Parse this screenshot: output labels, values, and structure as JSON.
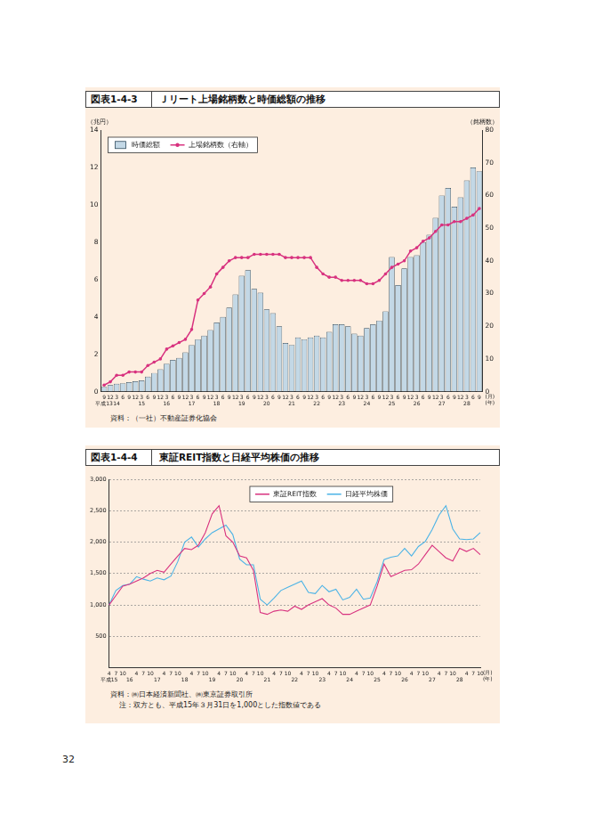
{
  "page_number": "32",
  "chart_data": [
    {
      "type": "bar",
      "figure_number": "図表1-4-3",
      "title": "Ｊリート上場銘柄数と時価総額の推移",
      "y_label": "（兆円）",
      "y2_label": "（銘柄数）",
      "x_unit_labels": [
        "(月)",
        "(年)"
      ],
      "categories": [
        "9",
        "12",
        "3",
        "6",
        "9",
        "12",
        "3",
        "6",
        "9",
        "12",
        "3",
        "6",
        "9",
        "12",
        "3",
        "6",
        "9",
        "12",
        "3",
        "6",
        "9",
        "12",
        "3",
        "6",
        "9",
        "12",
        "3",
        "6",
        "9",
        "12",
        "3",
        "6",
        "9",
        "12",
        "3",
        "6",
        "9",
        "12",
        "3",
        "6",
        "9",
        "12",
        "3",
        "6",
        "9",
        "12",
        "3",
        "6",
        "9",
        "12",
        "3",
        "6",
        "9",
        "12",
        "3",
        "6",
        "9",
        "12",
        "3",
        "6",
        "9"
      ],
      "years": [
        "平成13",
        null,
        "14",
        null,
        null,
        null,
        "15",
        null,
        null,
        null,
        "16",
        null,
        null,
        null,
        "17",
        null,
        null,
        null,
        "18",
        null,
        null,
        null,
        "19",
        null,
        null,
        null,
        "20",
        null,
        null,
        null,
        "21",
        null,
        null,
        null,
        "22",
        null,
        null,
        null,
        "23",
        null,
        null,
        null,
        "24",
        null,
        null,
        null,
        "25",
        null,
        null,
        null,
        "26",
        null,
        null,
        null,
        "27",
        null,
        null,
        null,
        "28",
        null,
        null
      ],
      "series": [
        {
          "name": "時価総額",
          "type": "bar",
          "color": "#c3d8e6",
          "values": [
            0.26,
            0.35,
            0.42,
            0.45,
            0.5,
            0.55,
            0.6,
            0.8,
            1.0,
            1.2,
            1.5,
            1.7,
            1.8,
            2.1,
            2.5,
            2.8,
            3.0,
            3.3,
            3.7,
            4.0,
            4.5,
            5.2,
            6.2,
            6.5,
            5.5,
            5.3,
            4.4,
            4.2,
            3.5,
            2.6,
            2.5,
            2.9,
            2.8,
            2.9,
            3.0,
            2.9,
            3.2,
            3.6,
            3.6,
            3.5,
            3.1,
            3.0,
            3.4,
            3.6,
            3.8,
            4.3,
            7.2,
            5.7,
            6.6,
            7.2,
            7.3,
            8.0,
            8.4,
            9.3,
            10.5,
            10.9,
            9.9,
            10.4,
            11.3,
            12.0,
            11.8
          ]
        },
        {
          "name": "上場銘柄数（右軸）",
          "type": "line",
          "color": "#d8327f",
          "marker": "circle",
          "axis": "y2",
          "values": [
            2,
            3,
            5,
            5,
            6,
            6,
            6,
            8,
            9,
            10,
            13,
            14,
            15,
            16,
            19,
            28,
            30,
            32,
            36,
            38,
            40,
            41,
            41,
            41,
            42,
            42,
            42,
            42,
            42,
            41,
            41,
            41,
            41,
            41,
            38,
            36,
            35,
            35,
            34,
            34,
            34,
            34,
            33,
            33,
            34,
            36,
            38,
            39,
            40,
            43,
            44,
            46,
            47,
            49,
            51,
            51,
            52,
            52,
            53,
            54,
            56
          ]
        }
      ],
      "ylim": [
        0,
        14
      ],
      "yticks": [
        0,
        2,
        4,
        6,
        8,
        10,
        12,
        14
      ],
      "y2lim": [
        0,
        80
      ],
      "y2ticks": [
        0,
        10,
        20,
        30,
        40,
        50,
        60,
        70,
        80
      ],
      "grid": false,
      "legend": "top-left",
      "source": "資料：（一社）不動産証券化協会"
    },
    {
      "type": "line",
      "figure_number": "図表1-4-4",
      "title": "東証REIT指数と日経平均株価の推移",
      "x_unit_labels": [
        "(月)",
        "(年)"
      ],
      "categories": [
        "4",
        "7",
        "10",
        null,
        "4",
        "7",
        "10",
        null,
        "4",
        "7",
        "10",
        null,
        "4",
        "7",
        "10",
        null,
        "4",
        "7",
        "10",
        null,
        "4",
        "7",
        "10",
        null,
        "4",
        "7",
        "10",
        null,
        "4",
        "7",
        "10",
        null,
        "4",
        "7",
        "10",
        null,
        "4",
        "7",
        "10",
        null,
        "4",
        "7",
        "10",
        null,
        "4",
        "7",
        "10",
        null,
        "4",
        "7",
        "10",
        null,
        "4",
        "7",
        "10"
      ],
      "years": [
        "平成15",
        null,
        null,
        "16",
        null,
        null,
        null,
        "17",
        null,
        null,
        null,
        "18",
        null,
        null,
        null,
        "19",
        null,
        null,
        null,
        "20",
        null,
        null,
        null,
        "21",
        null,
        null,
        null,
        "22",
        null,
        null,
        null,
        "23",
        null,
        null,
        null,
        "24",
        null,
        null,
        null,
        "25",
        null,
        null,
        null,
        "26",
        null,
        null,
        null,
        "27",
        null,
        null,
        null,
        "28",
        null,
        null,
        null
      ],
      "series": [
        {
          "name": "東証REIT指数",
          "color": "#d8327f",
          "values": [
            1000,
            1150,
            1300,
            1330,
            1380,
            1430,
            1500,
            1550,
            1520,
            1650,
            1780,
            1900,
            1880,
            1950,
            2150,
            2450,
            2580,
            2100,
            2000,
            1780,
            1750,
            1550,
            880,
            850,
            900,
            920,
            900,
            980,
            930,
            1000,
            1050,
            1100,
            1000,
            950,
            850,
            850,
            900,
            950,
            1000,
            1300,
            1650,
            1450,
            1500,
            1550,
            1560,
            1650,
            1800,
            1950,
            1850,
            1750,
            1700,
            1900,
            1850,
            1900,
            1800
          ]
        },
        {
          "name": "日経平均株価",
          "color": "#4bb3e6",
          "values": [
            1000,
            1230,
            1310,
            1330,
            1450,
            1410,
            1380,
            1430,
            1400,
            1460,
            1690,
            2000,
            2080,
            1920,
            2050,
            2150,
            2210,
            2270,
            2120,
            1730,
            1640,
            1640,
            1090,
            1000,
            1110,
            1230,
            1280,
            1330,
            1380,
            1200,
            1180,
            1310,
            1210,
            1250,
            1080,
            1120,
            1250,
            1090,
            1110,
            1370,
            1720,
            1760,
            1780,
            1900,
            1780,
            1930,
            2010,
            2200,
            2430,
            2580,
            2210,
            2050,
            2040,
            2050,
            2150
          ]
        }
      ],
      "ylim": [
        0,
        3000
      ],
      "yticks": [
        500,
        {
          "value": 1000,
          "label": "1,000"
        },
        {
          "value": 1500,
          "label": "1,500"
        },
        {
          "value": 2000,
          "label": "2,000"
        },
        {
          "value": 2500,
          "label": "2,500"
        },
        {
          "value": 3000,
          "label": "3,000"
        }
      ],
      "grid": true,
      "legend": "top",
      "source": "資料：㈱日本経済新聞社、㈱東京証券取引所",
      "note": "注：双方とも、平成15年３月31日を1,000とした指数値である"
    }
  ]
}
